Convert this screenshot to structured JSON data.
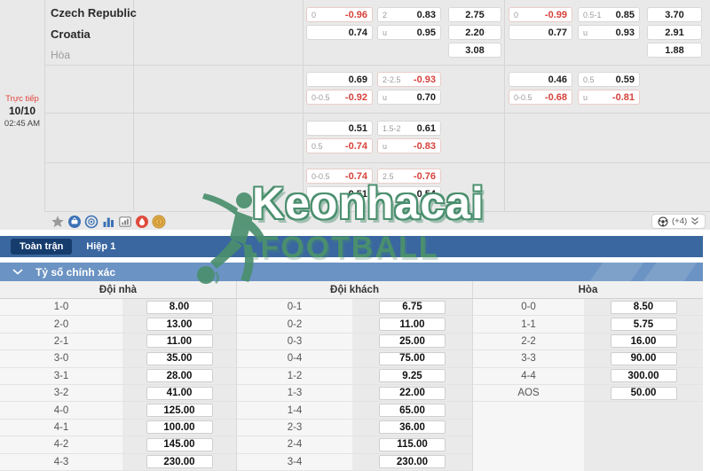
{
  "match": {
    "status": "Trực tiếp",
    "date": "10/10",
    "time": "02:45 AM",
    "home": "Czech Republic",
    "away": "Croatia",
    "draw_label": "Hòa"
  },
  "odds": {
    "cells": [
      {
        "col": "L1",
        "group": 1,
        "row": 0,
        "label": "0",
        "value": "-0.96",
        "red": true
      },
      {
        "col": "L1",
        "group": 1,
        "row": 1,
        "label": "",
        "value": "0.74"
      },
      {
        "col": "L2",
        "group": 1,
        "row": 0,
        "label": "2",
        "value": "0.83"
      },
      {
        "col": "L2",
        "group": 1,
        "row": 1,
        "label": "u",
        "value": "0.95"
      },
      {
        "col": "L3",
        "group": 1,
        "row": 0,
        "label": "",
        "value": "2.75",
        "center": true
      },
      {
        "col": "L3",
        "group": 1,
        "row": 1,
        "label": "",
        "value": "2.20",
        "center": true
      },
      {
        "col": "L3",
        "group": 1,
        "row": 2,
        "label": "",
        "value": "3.08",
        "center": true
      },
      {
        "col": "R1",
        "group": 1,
        "row": 0,
        "label": "0",
        "value": "-0.99",
        "red": true
      },
      {
        "col": "R1",
        "group": 1,
        "row": 1,
        "label": "",
        "value": "0.77"
      },
      {
        "col": "R2",
        "group": 1,
        "row": 0,
        "label": "0.5-1",
        "value": "0.85"
      },
      {
        "col": "R2",
        "group": 1,
        "row": 1,
        "label": "u",
        "value": "0.93"
      },
      {
        "col": "R3",
        "group": 1,
        "row": 0,
        "label": "",
        "value": "3.70",
        "center": true
      },
      {
        "col": "R3",
        "group": 1,
        "row": 1,
        "label": "",
        "value": "2.91",
        "center": true
      },
      {
        "col": "R3",
        "group": 1,
        "row": 2,
        "label": "",
        "value": "1.88",
        "center": true
      },
      {
        "col": "L1",
        "group": 2,
        "row": 0,
        "label": "",
        "value": "0.69"
      },
      {
        "col": "L1",
        "group": 2,
        "row": 1,
        "label": "0-0.5",
        "value": "-0.92",
        "red": true
      },
      {
        "col": "L2",
        "group": 2,
        "row": 0,
        "label": "2-2.5",
        "value": "-0.93",
        "red": true
      },
      {
        "col": "L2",
        "group": 2,
        "row": 1,
        "label": "u",
        "value": "0.70"
      },
      {
        "col": "R1",
        "group": 2,
        "row": 0,
        "label": "",
        "value": "0.46"
      },
      {
        "col": "R1",
        "group": 2,
        "row": 1,
        "label": "0-0.5",
        "value": "-0.68",
        "red": true
      },
      {
        "col": "R2",
        "group": 2,
        "row": 0,
        "label": "0.5",
        "value": "0.59"
      },
      {
        "col": "R2",
        "group": 2,
        "row": 1,
        "label": "u",
        "value": "-0.81",
        "red": true
      },
      {
        "col": "L1",
        "group": 3,
        "row": 0,
        "label": "",
        "value": "0.51"
      },
      {
        "col": "L1",
        "group": 3,
        "row": 1,
        "label": "0.5",
        "value": "-0.74",
        "red": true
      },
      {
        "col": "L2",
        "group": 3,
        "row": 0,
        "label": "1.5-2",
        "value": "0.61"
      },
      {
        "col": "L2",
        "group": 3,
        "row": 1,
        "label": "u",
        "value": "-0.83",
        "red": true
      },
      {
        "col": "L1",
        "group": 4,
        "row": 0,
        "label": "0-0.5",
        "value": "-0.74",
        "red": true
      },
      {
        "col": "L1",
        "group": 4,
        "row": 1,
        "label": "",
        "value": "0.51"
      },
      {
        "col": "L2",
        "group": 4,
        "row": 0,
        "label": "2.5",
        "value": "-0.76",
        "red": true
      },
      {
        "col": "L2",
        "group": 4,
        "row": 1,
        "label": "u",
        "value": "0.54"
      }
    ]
  },
  "toolbar": {
    "icons": [
      "favorite-star-icon",
      "live-stream-icon",
      "odds-watch-icon",
      "bar-chart-icon",
      "match-stats-icon",
      "hot-match-icon",
      "coin-icon"
    ],
    "more_markets_label": "(+4)",
    "more_icons": [
      "soccer-ball-icon",
      "double-chevron-down-icon"
    ]
  },
  "tabs": {
    "full_match": "Toàn trận",
    "first_half": "Hiệp 1"
  },
  "section": {
    "title": "Tỷ số chính xác"
  },
  "score_table": {
    "headers": {
      "home": "Đội nhà",
      "away": "Đội khách",
      "draw": "Hòa"
    },
    "home": [
      {
        "score": "1-0",
        "odds": "8.00"
      },
      {
        "score": "2-0",
        "odds": "13.00"
      },
      {
        "score": "2-1",
        "odds": "11.00"
      },
      {
        "score": "3-0",
        "odds": "35.00"
      },
      {
        "score": "3-1",
        "odds": "28.00"
      },
      {
        "score": "3-2",
        "odds": "41.00"
      },
      {
        "score": "4-0",
        "odds": "125.00"
      },
      {
        "score": "4-1",
        "odds": "100.00"
      },
      {
        "score": "4-2",
        "odds": "145.00"
      },
      {
        "score": "4-3",
        "odds": "230.00"
      }
    ],
    "away": [
      {
        "score": "0-1",
        "odds": "6.75"
      },
      {
        "score": "0-2",
        "odds": "11.00"
      },
      {
        "score": "0-3",
        "odds": "25.00"
      },
      {
        "score": "0-4",
        "odds": "75.00"
      },
      {
        "score": "1-2",
        "odds": "9.25"
      },
      {
        "score": "1-3",
        "odds": "22.00"
      },
      {
        "score": "1-4",
        "odds": "65.00"
      },
      {
        "score": "2-3",
        "odds": "36.00"
      },
      {
        "score": "2-4",
        "odds": "115.00"
      },
      {
        "score": "3-4",
        "odds": "230.00"
      }
    ],
    "draw": [
      {
        "score": "0-0",
        "odds": "8.50"
      },
      {
        "score": "1-1",
        "odds": "5.75"
      },
      {
        "score": "2-2",
        "odds": "16.00"
      },
      {
        "score": "3-3",
        "odds": "90.00"
      },
      {
        "score": "4-4",
        "odds": "300.00"
      },
      {
        "score": "AOS",
        "odds": "50.00"
      }
    ]
  },
  "watermark": {
    "brand": "Keonhacai",
    "sub": ".FOOTBALL"
  },
  "colors": {
    "accent_red": "#d7423b",
    "tab_bar_blue": "#3a679f",
    "tab_pill_navy": "#163c6d",
    "section_blue": "#6b93c3",
    "watermark_green": "#4a8f6e",
    "panel_gray": "#e9e9e9"
  }
}
